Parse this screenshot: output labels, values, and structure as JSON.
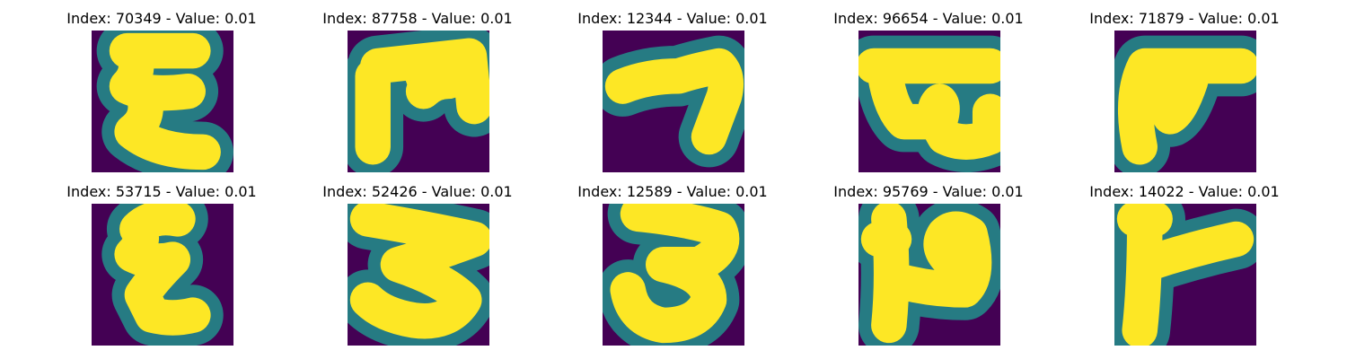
{
  "colors": {
    "background": "#440154",
    "stroke_edge": "#21918c",
    "stroke_core": "#fde725"
  },
  "panels": [
    {
      "title": "Index: 70349 - Value: 0.01"
    },
    {
      "title": "Index: 87758 - Value: 0.01"
    },
    {
      "title": "Index: 12344 - Value: 0.01"
    },
    {
      "title": "Index: 96654 - Value: 0.01"
    },
    {
      "title": "Index: 71879 - Value: 0.01"
    },
    {
      "title": "Index: 53715 - Value: 0.01"
    },
    {
      "title": "Index: 52426 - Value: 0.01"
    },
    {
      "title": "Index: 12589 - Value: 0.01"
    },
    {
      "title": "Index: 95769 - Value: 0.01"
    },
    {
      "title": "Index: 14022 - Value: 0.01"
    }
  ]
}
